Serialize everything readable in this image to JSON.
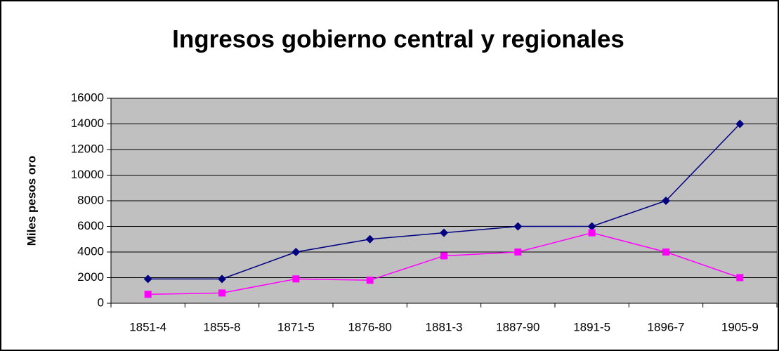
{
  "chart_data": {
    "type": "line",
    "title": "Ingresos gobierno central y regionales",
    "y_label": "Miles pesos oro",
    "categories": [
      "1851-4",
      "1855-8",
      "1871-5",
      "1876-80",
      "1881-3",
      "1887-90",
      "1891-5",
      "1896-7",
      "1905-9"
    ],
    "series": [
      {
        "color": "#000080",
        "marker": "diamond",
        "values": [
          1900,
          1900,
          4000,
          5000,
          5500,
          6000,
          6000,
          8000,
          14000
        ]
      },
      {
        "color": "#ff00ff",
        "marker": "square",
        "values": [
          700,
          800,
          1900,
          1800,
          3700,
          4000,
          5500,
          4000,
          2000
        ]
      }
    ],
    "ylim": [
      0,
      16000
    ],
    "yticks": [
      0,
      2000,
      4000,
      6000,
      8000,
      10000,
      12000,
      14000,
      16000
    ],
    "grid": true,
    "plot_background": "#c0c0c0"
  }
}
